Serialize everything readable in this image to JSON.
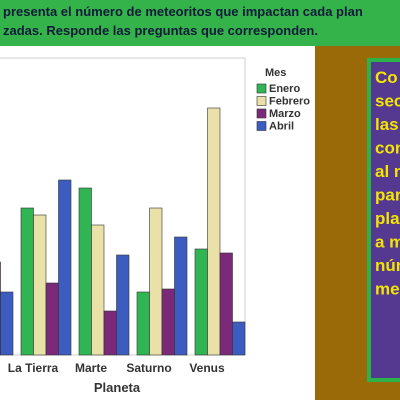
{
  "header": {
    "lines": [
      "presenta el número de meteoritos que impactan  cada plan",
      "zadas. Responde las preguntas que corresponden."
    ]
  },
  "chart_data": {
    "type": "bar",
    "categories": [
      null,
      "La Tierra",
      "Marte",
      "Saturno",
      "Venus"
    ],
    "x_label": "Planeta",
    "legend_title": "Mes",
    "series": [
      {
        "name": "Enero",
        "color": "#2fb552",
        "values": [
          null,
          147,
          167,
          63,
          106
        ]
      },
      {
        "name": "Febrero",
        "color": "#e9e1a8",
        "values": [
          null,
          140,
          130,
          147,
          247
        ]
      },
      {
        "name": "Marzo",
        "color": "#7a2a78",
        "values": [
          93,
          72,
          44,
          66,
          102
        ]
      },
      {
        "name": "Abril",
        "color": "#3c5cc0",
        "values": [
          63,
          175,
          100,
          118,
          33
        ]
      }
    ],
    "ylim": [
      0,
      297
    ]
  },
  "side_panel": {
    "lines": [
      "Co",
      "sec",
      "las",
      "con",
      "al n",
      "par",
      "plan",
      "a m",
      "núm",
      "me"
    ]
  }
}
